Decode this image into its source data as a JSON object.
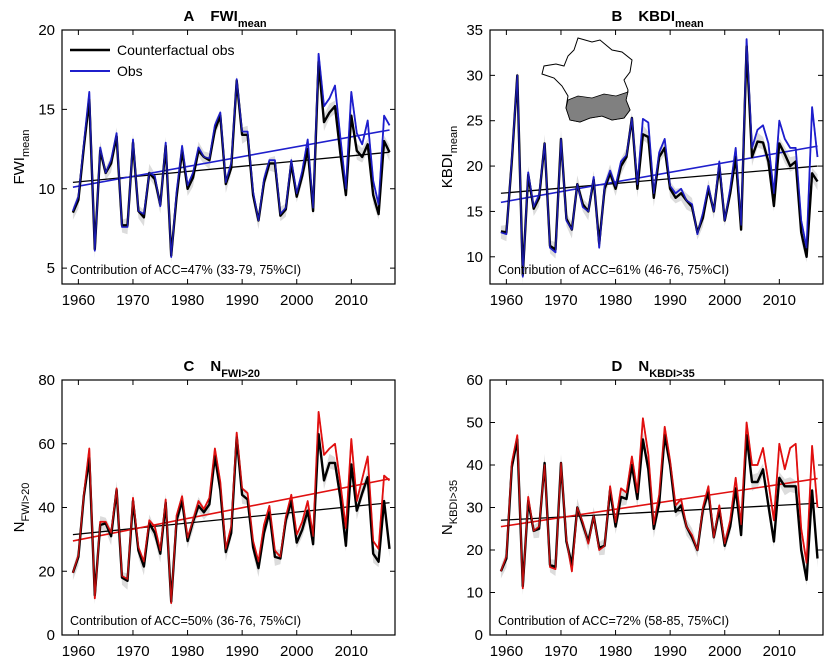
{
  "chart_data": [
    {
      "id": "A",
      "type": "line",
      "panel_letter": "A",
      "title_main": "FWI",
      "title_sub": "mean",
      "ylabel_main": "FWI",
      "ylabel_sub": "mean",
      "xlim": [
        1957,
        2018
      ],
      "ylim": [
        4,
        20
      ],
      "xticks": [
        1960,
        1970,
        1980,
        1990,
        2000,
        2010
      ],
      "yticks": [
        5,
        10,
        15,
        20
      ],
      "annotation": "Contribution of ACC=47% (33-79, 75%CI)",
      "legend": [
        "Counterfactual obs",
        "Obs"
      ],
      "obs_color": "#1f1fcc",
      "x": [
        1959,
        1960,
        1961,
        1962,
        1963,
        1964,
        1965,
        1966,
        1967,
        1968,
        1969,
        1970,
        1971,
        1972,
        1973,
        1974,
        1975,
        1976,
        1977,
        1978,
        1979,
        1980,
        1981,
        1982,
        1983,
        1984,
        1985,
        1986,
        1987,
        1988,
        1989,
        1990,
        1991,
        1992,
        1993,
        1994,
        1995,
        1996,
        1997,
        1998,
        1999,
        2000,
        2001,
        2002,
        2003,
        2004,
        2005,
        2006,
        2007,
        2008,
        2009,
        2010,
        2011,
        2012,
        2013,
        2014,
        2015,
        2016,
        2017
      ],
      "series": [
        {
          "name": "Counterfactual obs",
          "values": [
            8.5,
            9.3,
            12.6,
            15.6,
            6.2,
            12.4,
            11.0,
            11.6,
            13.3,
            7.7,
            7.7,
            12.9,
            8.6,
            8.2,
            11.0,
            10.6,
            9.0,
            12.7,
            5.8,
            9.5,
            12.4,
            10.0,
            10.7,
            12.4,
            12.0,
            11.8,
            13.7,
            14.6,
            10.3,
            11.3,
            16.8,
            13.4,
            13.4,
            9.6,
            8.0,
            10.4,
            11.6,
            11.6,
            8.3,
            8.7,
            11.6,
            9.5,
            10.8,
            12.5,
            8.6,
            18.0,
            14.2,
            14.8,
            15.2,
            12.2,
            9.6,
            14.6,
            12.4,
            12.0,
            12.8,
            9.6,
            8.4,
            13.0,
            12.3
          ]
        },
        {
          "name": "Obs",
          "values": [
            8.6,
            9.5,
            12.8,
            16.1,
            6.1,
            12.6,
            11.0,
            11.8,
            13.5,
            7.6,
            7.6,
            13.1,
            8.6,
            8.4,
            11.0,
            10.8,
            8.9,
            12.9,
            5.7,
            9.8,
            12.7,
            10.2,
            11.0,
            12.6,
            12.0,
            11.9,
            14.0,
            14.8,
            10.4,
            11.6,
            16.9,
            13.6,
            13.6,
            9.8,
            8.0,
            10.6,
            11.8,
            11.8,
            8.4,
            8.8,
            11.8,
            9.7,
            11.1,
            13.1,
            8.8,
            18.5,
            15.2,
            15.7,
            16.5,
            13.2,
            10.0,
            16.1,
            13.5,
            12.8,
            14.3,
            10.5,
            9.0,
            14.6,
            14.0
          ]
        }
      ],
      "trend_lines": [
        {
          "name": "Counterfactual obs trend",
          "x": [
            1959,
            2017
          ],
          "y": [
            10.4,
            12.3
          ]
        },
        {
          "name": "Obs trend",
          "x": [
            1959,
            2017
          ],
          "y": [
            10.1,
            13.7
          ]
        }
      ]
    },
    {
      "id": "B",
      "type": "line",
      "panel_letter": "B",
      "title_main": "KBDI",
      "title_sub": "mean",
      "ylabel_main": "KBDI",
      "ylabel_sub": "mean",
      "xlim": [
        1957,
        2018
      ],
      "ylim": [
        7,
        35
      ],
      "xticks": [
        1960,
        1970,
        1980,
        1990,
        2000,
        2010
      ],
      "yticks": [
        10,
        15,
        20,
        25,
        30,
        35
      ],
      "annotation": "Contribution of ACC=61% (46-76, 75%CI)",
      "obs_color": "#1f1fcc",
      "inset": "France map with highlighted southern region",
      "x": [
        1959,
        1960,
        1961,
        1962,
        1963,
        1964,
        1965,
        1966,
        1967,
        1968,
        1969,
        1970,
        1971,
        1972,
        1973,
        1974,
        1975,
        1976,
        1977,
        1978,
        1979,
        1980,
        1981,
        1982,
        1983,
        1984,
        1985,
        1986,
        1987,
        1988,
        1989,
        1990,
        1991,
        1992,
        1993,
        1994,
        1995,
        1996,
        1997,
        1998,
        1999,
        2000,
        2001,
        2002,
        2003,
        2004,
        2005,
        2006,
        2007,
        2008,
        2009,
        2010,
        2011,
        2012,
        2013,
        2014,
        2015,
        2016,
        2017
      ],
      "series": [
        {
          "name": "Counterfactual obs",
          "values": [
            12.8,
            12.7,
            20.5,
            30.0,
            8.0,
            19.0,
            15.3,
            16.5,
            22.5,
            11.2,
            10.8,
            23.0,
            14.2,
            13.0,
            18.0,
            15.8,
            15.0,
            18.5,
            11.5,
            17.5,
            19.2,
            17.5,
            20.0,
            21.0,
            25.3,
            17.5,
            23.5,
            23.2,
            16.5,
            21.0,
            22.0,
            17.5,
            16.5,
            17.0,
            16.2,
            15.5,
            12.7,
            14.3,
            17.5,
            15.0,
            20.0,
            14.0,
            17.0,
            21.0,
            13.0,
            33.2,
            21.0,
            22.7,
            22.6,
            20.5,
            15.6,
            22.5,
            21.3,
            20.0,
            20.5,
            12.7,
            10.0,
            19.2,
            18.3
          ]
        },
        {
          "name": "Obs",
          "values": [
            12.7,
            12.5,
            20.8,
            30.0,
            7.8,
            19.3,
            15.5,
            16.8,
            22.5,
            11.0,
            10.5,
            23.0,
            14.0,
            13.0,
            18.0,
            15.5,
            15.0,
            18.8,
            11.0,
            17.8,
            19.5,
            17.8,
            20.5,
            21.2,
            25.3,
            18.0,
            25.2,
            24.8,
            17.0,
            21.5,
            23.0,
            17.8,
            17.0,
            17.5,
            16.2,
            15.8,
            12.5,
            14.8,
            17.8,
            15.0,
            20.5,
            14.0,
            17.5,
            22.0,
            13.5,
            34.0,
            22.0,
            24.0,
            24.5,
            22.5,
            17.0,
            25.0,
            23.0,
            22.0,
            22.0,
            14.0,
            11.0,
            26.5,
            21.0
          ]
        }
      ],
      "trend_lines": [
        {
          "name": "Counterfactual obs trend",
          "x": [
            1959,
            2017
          ],
          "y": [
            17.0,
            20.0
          ]
        },
        {
          "name": "Obs trend",
          "x": [
            1959,
            2017
          ],
          "y": [
            16.0,
            22.2
          ]
        }
      ]
    },
    {
      "id": "C",
      "type": "line",
      "panel_letter": "C",
      "title_main": "N",
      "title_sub": "FWI>20",
      "ylabel_main": "N",
      "ylabel_sub": "FWI>20",
      "xlim": [
        1957,
        2018
      ],
      "ylim": [
        0,
        80
      ],
      "xticks": [
        1960,
        1970,
        1980,
        1990,
        2000,
        2010
      ],
      "yticks": [
        0,
        20,
        40,
        60,
        80
      ],
      "annotation": "Contribution of ACC=50% (36-76, 75%CI)",
      "obs_color": "#e01010",
      "x": [
        1959,
        1960,
        1961,
        1962,
        1963,
        1964,
        1965,
        1966,
        1967,
        1968,
        1969,
        1970,
        1971,
        1972,
        1973,
        1974,
        1975,
        1976,
        1977,
        1978,
        1979,
        1980,
        1981,
        1982,
        1983,
        1984,
        1985,
        1986,
        1987,
        1988,
        1989,
        1990,
        1991,
        1992,
        1993,
        1994,
        1995,
        1996,
        1997,
        1998,
        1999,
        2000,
        2001,
        2002,
        2003,
        2004,
        2005,
        2006,
        2007,
        2008,
        2009,
        2010,
        2011,
        2012,
        2013,
        2014,
        2015,
        2016,
        2017
      ],
      "series": [
        {
          "name": "Counterfactual obs",
          "values": [
            19.5,
            24.5,
            43.5,
            55.5,
            12.5,
            34.5,
            35.0,
            31.0,
            45.5,
            18.0,
            17.0,
            42.0,
            26.5,
            21.5,
            35.0,
            32.0,
            25.5,
            41.5,
            10.5,
            36.0,
            42.0,
            29.5,
            35.5,
            40.5,
            38.5,
            41.0,
            56.0,
            45.5,
            26.0,
            32.0,
            62.0,
            44.0,
            42.5,
            27.5,
            21.0,
            32.0,
            38.5,
            24.5,
            24.0,
            36.0,
            42.0,
            29.0,
            33.0,
            39.0,
            28.5,
            63.0,
            48.5,
            54.0,
            54.0,
            43.0,
            28.0,
            53.5,
            39.0,
            44.5,
            49.5,
            25.5,
            23.0,
            42.0,
            27.0
          ]
        },
        {
          "name": "Obs",
          "values": [
            19.5,
            25.0,
            44.0,
            58.5,
            11.5,
            35.5,
            35.5,
            32.0,
            46.0,
            18.5,
            17.5,
            43.0,
            27.5,
            23.0,
            36.0,
            34.0,
            26.5,
            42.5,
            10.0,
            37.5,
            43.5,
            30.5,
            36.0,
            42.0,
            39.5,
            43.0,
            58.5,
            48.0,
            27.0,
            34.0,
            63.5,
            46.0,
            44.5,
            29.5,
            23.0,
            34.5,
            40.5,
            26.5,
            24.5,
            37.0,
            44.0,
            31.5,
            35.5,
            42.0,
            31.0,
            70.0,
            56.5,
            58.5,
            60.0,
            47.5,
            33.5,
            61.5,
            42.0,
            49.0,
            56.0,
            29.5,
            27.0,
            50.0,
            48.5
          ]
        }
      ],
      "trend_lines": [
        {
          "name": "Counterfactual obs trend",
          "x": [
            1959,
            2017
          ],
          "y": [
            31.5,
            41.5
          ]
        },
        {
          "name": "Obs trend",
          "x": [
            1959,
            2017
          ],
          "y": [
            29.5,
            49.0
          ]
        }
      ]
    },
    {
      "id": "D",
      "type": "line",
      "panel_letter": "D",
      "title_main": "N",
      "title_sub": "KBDI>35",
      "ylabel_main": "N",
      "ylabel_sub": "KBDI>35",
      "xlim": [
        1957,
        2018
      ],
      "ylim": [
        0,
        60
      ],
      "xticks": [
        1960,
        1970,
        1980,
        1990,
        2000,
        2010
      ],
      "yticks": [
        0,
        10,
        20,
        30,
        40,
        50,
        60
      ],
      "annotation": "Contribution of ACC=72% (58-85, 75%CI)",
      "obs_color": "#e01010",
      "x": [
        1959,
        1960,
        1961,
        1962,
        1963,
        1964,
        1965,
        1966,
        1967,
        1968,
        1969,
        1970,
        1971,
        1972,
        1973,
        1974,
        1975,
        1976,
        1977,
        1978,
        1979,
        1980,
        1981,
        1982,
        1983,
        1984,
        1985,
        1986,
        1987,
        1988,
        1989,
        1990,
        1991,
        1992,
        1993,
        1994,
        1995,
        1996,
        1997,
        1998,
        1999,
        2000,
        2001,
        2002,
        2003,
        2004,
        2005,
        2006,
        2007,
        2008,
        2009,
        2010,
        2011,
        2012,
        2013,
        2014,
        2015,
        2016,
        2017
      ],
      "series": [
        {
          "name": "Counterfactual obs",
          "values": [
            15.0,
            18.0,
            39.5,
            46.0,
            11.5,
            31.5,
            24.5,
            25.0,
            40.5,
            16.5,
            16.0,
            40.5,
            22.0,
            16.5,
            30.0,
            26.0,
            22.0,
            28.0,
            20.5,
            21.0,
            34.0,
            25.5,
            32.5,
            32.0,
            40.0,
            32.0,
            46.0,
            39.0,
            25.0,
            31.0,
            47.0,
            40.0,
            29.0,
            30.5,
            25.5,
            23.0,
            20.0,
            29.5,
            33.5,
            23.0,
            29.5,
            21.0,
            25.5,
            34.5,
            23.5,
            47.0,
            36.0,
            36.0,
            39.0,
            30.5,
            22.0,
            37.0,
            35.0,
            35.0,
            35.0,
            20.0,
            13.0,
            34.0,
            18.0
          ]
        },
        {
          "name": "Obs",
          "values": [
            15.0,
            18.5,
            40.5,
            47.0,
            11.0,
            32.5,
            24.5,
            25.5,
            40.0,
            16.0,
            15.5,
            40.5,
            22.5,
            15.0,
            30.0,
            26.5,
            21.5,
            28.0,
            20.0,
            21.0,
            35.0,
            26.5,
            34.5,
            33.5,
            42.0,
            33.5,
            51.0,
            42.5,
            26.0,
            33.0,
            49.0,
            41.0,
            30.5,
            32.0,
            25.5,
            23.5,
            20.0,
            30.0,
            35.0,
            23.0,
            30.5,
            21.5,
            27.0,
            37.0,
            26.0,
            50.0,
            40.0,
            40.0,
            44.0,
            36.0,
            27.0,
            45.0,
            39.0,
            44.0,
            45.0,
            25.0,
            17.0,
            44.5,
            30.0
          ]
        }
      ],
      "trend_lines": [
        {
          "name": "Counterfactual obs trend",
          "x": [
            1959,
            2017
          ],
          "y": [
            27.0,
            31.0
          ]
        },
        {
          "name": "Obs trend",
          "x": [
            1959,
            2017
          ],
          "y": [
            25.5,
            36.8
          ]
        }
      ]
    }
  ]
}
